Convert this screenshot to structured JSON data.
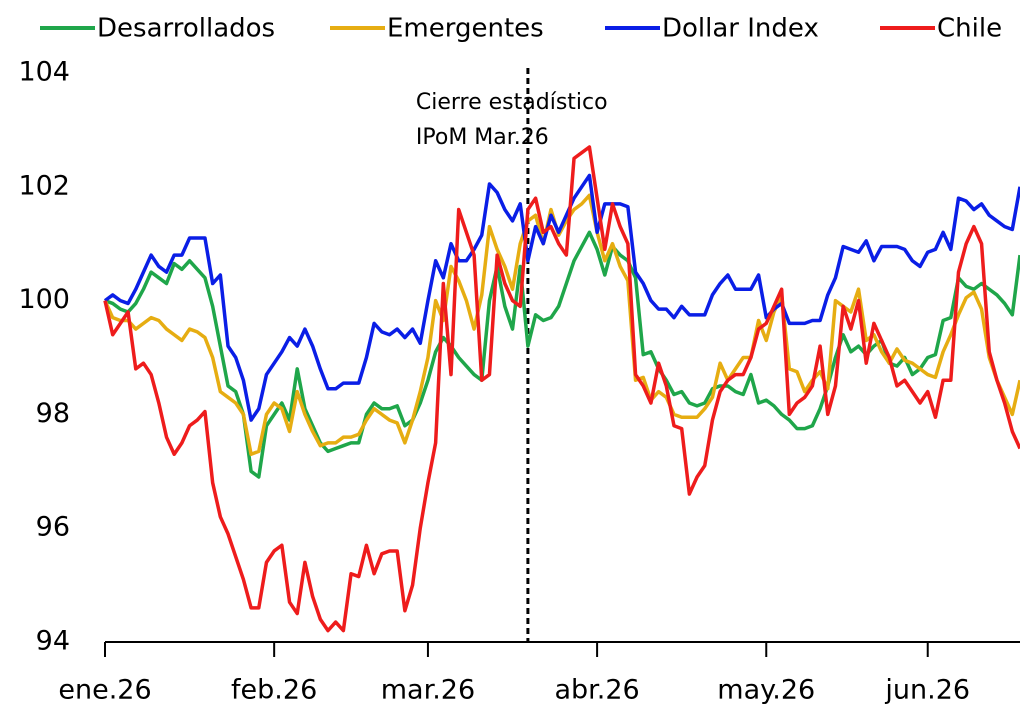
{
  "chart_data": {
    "type": "line",
    "categories": [
      "ene.26",
      null,
      null,
      null,
      null,
      null,
      null,
      null,
      null,
      null,
      null,
      null,
      null,
      null,
      null,
      null,
      null,
      null,
      null,
      null,
      null,
      null,
      "feb.26",
      null,
      null,
      null,
      null,
      null,
      null,
      null,
      null,
      null,
      null,
      null,
      null,
      null,
      null,
      null,
      null,
      null,
      null,
      null,
      "mar.26",
      null,
      null,
      null,
      null,
      null,
      null,
      null,
      null,
      null,
      null,
      null,
      null,
      null,
      null,
      null,
      null,
      null,
      null,
      null,
      null,
      null,
      "abr.26",
      null,
      null,
      null,
      null,
      null,
      null,
      null,
      null,
      null,
      null,
      null,
      null,
      null,
      null,
      null,
      null,
      null,
      null,
      null,
      null,
      null,
      "may.26",
      null,
      null,
      null,
      null,
      null,
      null,
      null,
      null,
      null,
      null,
      null,
      null,
      null,
      null,
      null,
      null,
      null,
      null,
      null,
      null,
      "jun.26",
      null,
      null,
      null,
      null,
      null,
      null,
      null,
      null,
      null,
      null,
      null,
      null
    ],
    "series": [
      {
        "name": "Desarrollados",
        "color": "#1fa64a",
        "values": [
          100,
          99.95,
          99.85,
          99.8,
          99.95,
          100.2,
          100.5,
          100.4,
          100.3,
          100.65,
          100.55,
          100.7,
          100.55,
          100.4,
          99.9,
          99.2,
          98.5,
          98.4,
          98.0,
          97.0,
          96.9,
          97.8,
          98.0,
          98.2,
          97.9,
          98.8,
          98.1,
          97.8,
          97.5,
          97.35,
          97.4,
          97.45,
          97.5,
          97.5,
          98.0,
          98.2,
          98.1,
          98.1,
          98.15,
          97.8,
          97.9,
          98.2,
          98.6,
          99.1,
          99.35,
          99.2,
          99.0,
          98.85,
          98.7,
          98.6,
          100.0,
          100.6,
          99.9,
          99.5,
          100.6,
          99.2,
          99.75,
          99.65,
          99.7,
          99.9,
          100.3,
          100.7,
          100.95,
          101.2,
          100.9,
          100.45,
          100.95,
          100.8,
          100.7,
          100.4,
          99.05,
          99.1,
          98.8,
          98.6,
          98.35,
          98.4,
          98.2,
          98.15,
          98.2,
          98.45,
          98.5,
          98.5,
          98.4,
          98.35,
          98.7,
          98.2,
          98.25,
          98.15,
          98.0,
          97.9,
          97.75,
          97.75,
          97.8,
          98.1,
          98.5,
          99.0,
          99.4,
          99.1,
          99.2,
          99.05,
          99.2,
          99.3,
          98.9,
          98.85,
          99.0,
          98.7,
          98.8,
          99.0,
          99.05,
          99.65,
          99.7,
          100.4,
          100.25,
          100.2,
          100.3,
          100.2,
          100.1,
          99.95,
          99.75,
          100.8
        ]
      },
      {
        "name": "Emergentes",
        "color": "#e6ad12",
        "values": [
          100,
          99.7,
          99.65,
          99.65,
          99.5,
          99.6,
          99.7,
          99.65,
          99.5,
          99.4,
          99.3,
          99.5,
          99.45,
          99.35,
          99.0,
          98.4,
          98.3,
          98.2,
          98.0,
          97.3,
          97.35,
          98.0,
          98.2,
          98.1,
          97.7,
          98.4,
          98.0,
          97.7,
          97.45,
          97.5,
          97.5,
          97.6,
          97.6,
          97.65,
          97.9,
          98.1,
          98.0,
          97.9,
          97.85,
          97.5,
          97.9,
          98.4,
          99.0,
          100.0,
          99.65,
          100.6,
          100.35,
          100.0,
          99.5,
          100.1,
          101.3,
          100.9,
          100.6,
          100.2,
          101.0,
          101.4,
          101.5,
          101.0,
          101.6,
          101.15,
          101.4,
          101.6,
          101.7,
          101.85,
          101.2,
          100.7,
          101.0,
          100.6,
          100.35,
          98.6,
          98.65,
          98.25,
          98.4,
          98.3,
          98.0,
          97.95,
          97.95,
          97.95,
          98.1,
          98.3,
          98.9,
          98.6,
          98.8,
          99.0,
          99.0,
          99.65,
          99.3,
          99.8,
          100.1,
          98.8,
          98.75,
          98.4,
          98.6,
          98.75,
          98.45,
          100.0,
          99.9,
          99.8,
          100.2,
          99.3,
          99.4,
          99.1,
          98.9,
          99.15,
          98.95,
          98.9,
          98.8,
          98.7,
          98.65,
          99.1,
          99.4,
          99.75,
          100.05,
          100.15,
          99.85,
          99.0,
          98.6,
          98.3,
          98.0,
          98.6
        ]
      },
      {
        "name": "Dollar Index",
        "color": "#0a1ee6",
        "values": [
          100,
          100.1,
          100.0,
          99.95,
          100.2,
          100.5,
          100.8,
          100.6,
          100.5,
          100.8,
          100.8,
          101.1,
          101.1,
          101.1,
          100.3,
          100.45,
          99.2,
          99.0,
          98.6,
          97.9,
          98.1,
          98.7,
          98.9,
          99.1,
          99.35,
          99.2,
          99.5,
          99.2,
          98.8,
          98.45,
          98.45,
          98.55,
          98.55,
          98.55,
          99.0,
          99.6,
          99.45,
          99.4,
          99.5,
          99.35,
          99.5,
          99.25,
          100.0,
          100.7,
          100.4,
          101.0,
          100.7,
          100.7,
          100.9,
          101.15,
          102.05,
          101.9,
          101.6,
          101.4,
          101.7,
          100.7,
          101.3,
          101.0,
          101.5,
          101.2,
          101.5,
          101.8,
          102.0,
          102.2,
          101.2,
          101.7,
          101.7,
          101.7,
          101.65,
          100.5,
          100.3,
          100.0,
          99.85,
          99.85,
          99.7,
          99.9,
          99.75,
          99.75,
          99.75,
          100.1,
          100.3,
          100.45,
          100.2,
          100.2,
          100.2,
          100.45,
          99.7,
          99.85,
          99.95,
          99.6,
          99.6,
          99.6,
          99.65,
          99.65,
          100.1,
          100.4,
          100.95,
          100.9,
          100.85,
          101.05,
          100.7,
          100.95,
          100.95,
          100.95,
          100.9,
          100.7,
          100.6,
          100.85,
          100.9,
          101.2,
          100.9,
          101.8,
          101.75,
          101.6,
          101.7,
          101.5,
          101.4,
          101.3,
          101.25,
          102.0
        ]
      },
      {
        "name": "Chile",
        "color": "#ee1c1c",
        "values": [
          100,
          99.4,
          99.6,
          99.8,
          98.8,
          98.9,
          98.7,
          98.2,
          97.6,
          97.3,
          97.5,
          97.8,
          97.9,
          98.05,
          96.8,
          96.2,
          95.9,
          95.5,
          95.1,
          94.6,
          94.6,
          95.4,
          95.6,
          95.7,
          94.7,
          94.5,
          95.4,
          94.8,
          94.4,
          94.2,
          94.35,
          94.2,
          95.2,
          95.15,
          95.7,
          95.2,
          95.55,
          95.6,
          95.6,
          94.55,
          95.0,
          96.0,
          96.8,
          97.5,
          100.3,
          98.7,
          101.6,
          101.2,
          100.8,
          98.6,
          98.7,
          100.8,
          100.3,
          100.0,
          99.9,
          101.6,
          101.8,
          101.2,
          101.3,
          101.0,
          100.8,
          102.5,
          102.6,
          102.7,
          101.8,
          100.9,
          101.7,
          101.3,
          101.0,
          98.7,
          98.5,
          98.2,
          98.9,
          98.5,
          97.8,
          97.75,
          96.6,
          96.9,
          97.1,
          97.9,
          98.4,
          98.6,
          98.7,
          98.7,
          99.0,
          99.5,
          99.6,
          99.9,
          100.2,
          98.0,
          98.2,
          98.3,
          98.5,
          99.2,
          98.0,
          98.5,
          99.9,
          99.5,
          100.0,
          98.9,
          99.6,
          99.3,
          99.0,
          98.5,
          98.6,
          98.4,
          98.2,
          98.4,
          97.95,
          98.6,
          98.6,
          100.5,
          101.0,
          101.3,
          101.0,
          99.1,
          98.6,
          98.2,
          97.7,
          97.4
        ]
      }
    ],
    "ylim": [
      94,
      104
    ],
    "yticks": [
      94,
      96,
      98,
      100,
      102,
      104
    ],
    "grid": false,
    "legend": "top",
    "vline": {
      "x": 55,
      "text": [
        "Cierre estadístico",
        "IPoM Mar.26"
      ]
    }
  }
}
